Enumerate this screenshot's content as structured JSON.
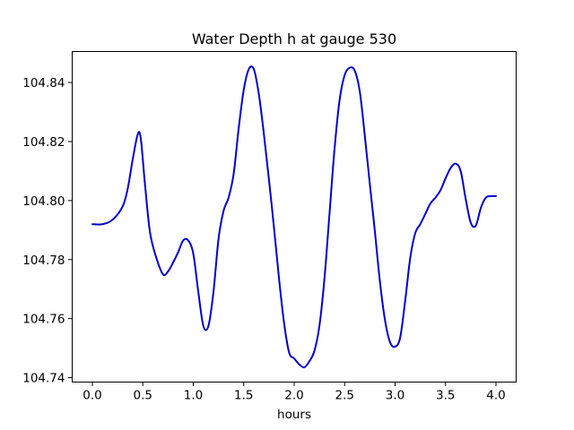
{
  "chart_data": {
    "type": "line",
    "title": "Water Depth h at gauge 530",
    "xlabel": "hours",
    "ylabel": "",
    "xlim": [
      -0.2,
      4.2
    ],
    "ylim": [
      104.7385,
      104.8505
    ],
    "xticks": [
      0.0,
      0.5,
      1.0,
      1.5,
      2.0,
      2.5,
      3.0,
      3.5,
      4.0
    ],
    "xtick_labels": [
      "0.0",
      "0.5",
      "1.0",
      "1.5",
      "2.0",
      "2.5",
      "3.0",
      "3.5",
      "4.0"
    ],
    "yticks": [
      104.74,
      104.76,
      104.78,
      104.8,
      104.82,
      104.84
    ],
    "ytick_labels": [
      "104.74",
      "104.76",
      "104.78",
      "104.80",
      "104.82",
      "104.84"
    ],
    "grid": false,
    "series": [
      {
        "color": "#0000cc",
        "x": [
          0.0,
          0.1,
          0.2,
          0.3,
          0.35,
          0.4,
          0.45,
          0.48,
          0.52,
          0.57,
          0.63,
          0.7,
          0.75,
          0.8,
          0.85,
          0.9,
          0.95,
          1.0,
          1.05,
          1.1,
          1.15,
          1.2,
          1.25,
          1.3,
          1.35,
          1.4,
          1.45,
          1.5,
          1.55,
          1.6,
          1.65,
          1.7,
          1.78,
          1.85,
          1.9,
          1.95,
          2.0,
          2.05,
          2.1,
          2.15,
          2.2,
          2.25,
          2.3,
          2.35,
          2.4,
          2.45,
          2.5,
          2.55,
          2.6,
          2.65,
          2.7,
          2.75,
          2.8,
          2.85,
          2.9,
          2.95,
          3.0,
          3.05,
          3.1,
          3.15,
          3.2,
          3.25,
          3.3,
          3.35,
          3.4,
          3.45,
          3.5,
          3.55,
          3.6,
          3.65,
          3.7,
          3.75,
          3.8,
          3.85,
          3.9,
          3.95,
          4.0
        ],
        "y": [
          104.792,
          104.792,
          104.7935,
          104.798,
          104.804,
          104.814,
          104.8225,
          104.821,
          104.806,
          104.7895,
          104.781,
          104.775,
          104.776,
          104.779,
          104.7825,
          104.7865,
          104.7865,
          104.782,
          104.769,
          104.7575,
          104.7575,
          104.769,
          104.787,
          104.7965,
          104.801,
          104.809,
          104.8245,
          104.8375,
          104.8445,
          104.8445,
          104.836,
          104.8225,
          104.7975,
          104.7735,
          104.7585,
          104.7485,
          104.7465,
          104.7445,
          104.7435,
          104.7455,
          104.749,
          104.7575,
          104.7735,
          104.7955,
          104.8175,
          104.834,
          104.8425,
          104.845,
          104.844,
          104.837,
          104.822,
          104.8055,
          104.7895,
          104.7725,
          104.7595,
          104.752,
          104.7505,
          104.7535,
          104.766,
          104.7805,
          104.789,
          104.792,
          104.7955,
          104.799,
          104.801,
          104.8035,
          104.8075,
          104.811,
          104.8125,
          104.81,
          104.8005,
          104.7925,
          104.7915,
          104.7975,
          104.801,
          104.8015,
          104.8015
        ]
      }
    ]
  }
}
